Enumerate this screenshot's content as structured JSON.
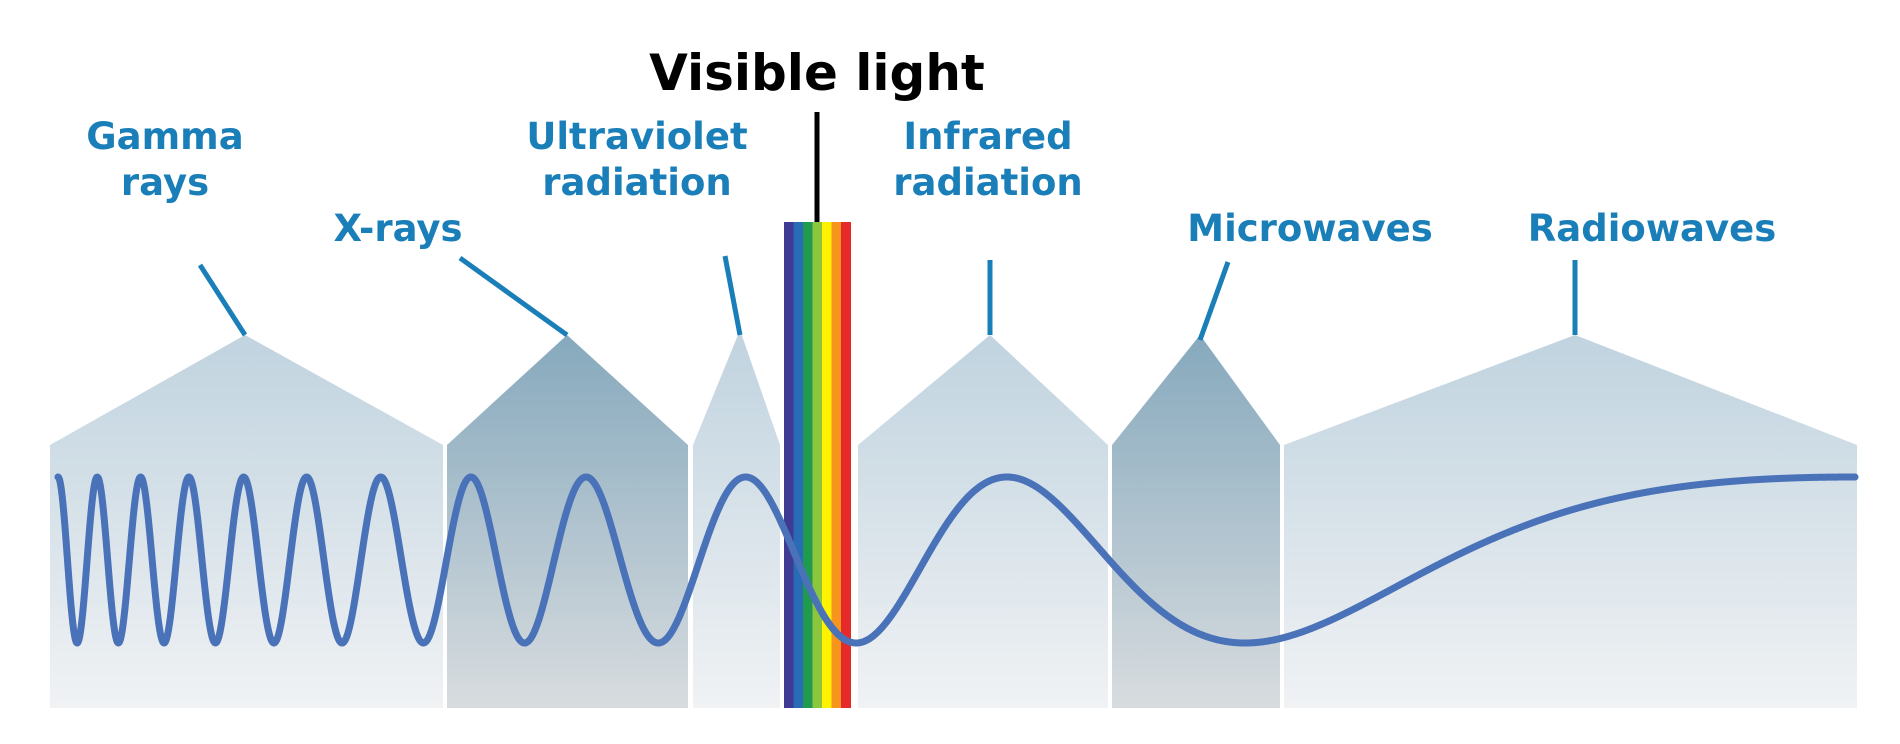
{
  "title": "Visible light",
  "colors": {
    "label": "#1a7fb8",
    "wave": "#4a72b8",
    "title": "#000000",
    "band_light": "#c3d5e0",
    "band_dark": "#8fb0c3",
    "band_bottom": "#f1f3f5"
  },
  "bands": [
    {
      "id": "gamma",
      "label_lines": [
        "Gamma",
        "rays"
      ],
      "shade": "light"
    },
    {
      "id": "xray",
      "label_lines": [
        "X-rays"
      ],
      "shade": "dark"
    },
    {
      "id": "uv",
      "label_lines": [
        "Ultraviolet",
        "radiation"
      ],
      "shade": "light"
    },
    {
      "id": "ir",
      "label_lines": [
        "Infrared",
        "radiation"
      ],
      "shade": "light"
    },
    {
      "id": "micro",
      "label_lines": [
        "Microwaves"
      ],
      "shade": "dark"
    },
    {
      "id": "radio",
      "label_lines": [
        "Radiowaves"
      ],
      "shade": "light"
    }
  ],
  "spectrum_colors": [
    "#3f3a94",
    "#2a6bb5",
    "#1f9a4e",
    "#8cc63e",
    "#fff200",
    "#f7941d",
    "#e62a2a"
  ]
}
